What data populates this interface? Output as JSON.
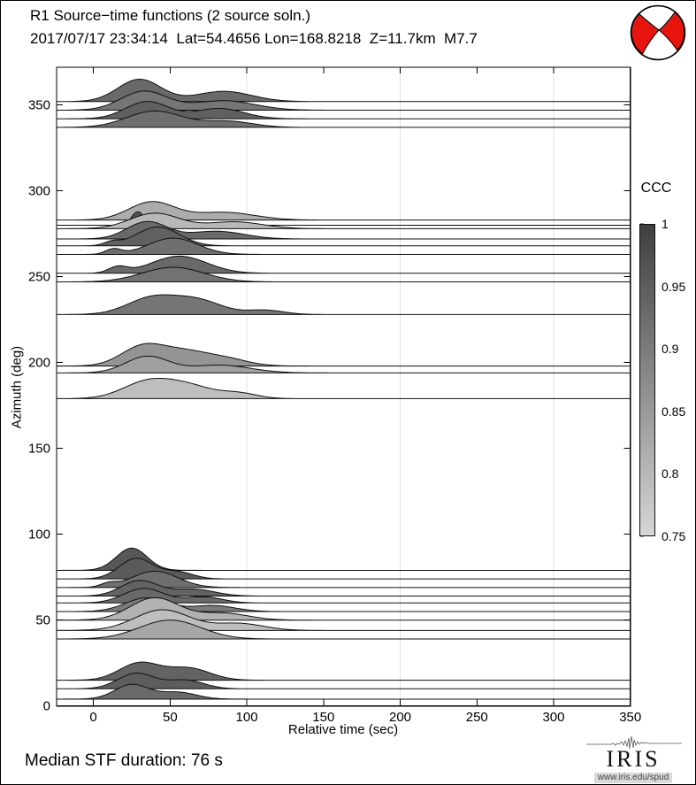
{
  "header": {
    "title_line1": "R1 Source−time functions (2 source soln.)",
    "title_line2": "2017/07/17 23:34:14  Lat=54.4656 Lon=168.8218  Z=11.7km  M7.7"
  },
  "footer": {
    "median_duration_label": "Median STF duration: 76 s"
  },
  "logo": {
    "name": "IRIS",
    "url": "www.iris.edu/spud"
  },
  "beachball": {
    "red_hex": "#e8150f",
    "white_hex": "#ffffff",
    "outline_hex": "#000000"
  },
  "chart_data": {
    "type": "area",
    "variant": "azimuth-stacked source-time functions (ridgeline)",
    "title": "R1 Source−time functions (2 source soln.)",
    "event": {
      "origin_time": "2017/07/17 23:34:14",
      "lat": 54.4656,
      "lon": 168.8218,
      "depth_km": 11.7,
      "magnitude": "M7.7",
      "median_stf_duration_s": 76
    },
    "xlabel": "Relative time (sec)",
    "ylabel": "Azimuth (deg)",
    "xlim": [
      -24,
      350
    ],
    "ylim": [
      0,
      372
    ],
    "xticks": [
      0,
      50,
      100,
      150,
      200,
      250,
      300,
      350
    ],
    "yticks": [
      0,
      50,
      100,
      150,
      200,
      250,
      300,
      350
    ],
    "gridlines_x": [
      100,
      200,
      300
    ],
    "grid": "light vertical gridlines only",
    "line_color": "#111111",
    "gridline_color": "#e3e3e3",
    "colorbar": {
      "title": "CCC",
      "min": 0.75,
      "max": 1.0,
      "tick_values": [
        1,
        0.95,
        0.9,
        0.85,
        0.8,
        0.75
      ],
      "tick_labels": [
        "1",
        "0.95",
        "0.9",
        "0.85",
        "0.8",
        "0.75"
      ],
      "top_color": "#3f3f3f",
      "bottom_color": "#d6d6d6",
      "legend_position": "right"
    },
    "amplitude_units": "deg (azimuth axis units)",
    "gaussian_format": "[center_sec, sigma_sec, amplitude_deg]",
    "traces": [
      {
        "azimuth_deg": 352,
        "ccc": 0.93,
        "gaussians": [
          [
            30,
            14,
            13
          ],
          [
            85,
            18,
            6
          ]
        ]
      },
      {
        "azimuth_deg": 347,
        "ccc": 0.91,
        "gaussians": [
          [
            33,
            15,
            11
          ],
          [
            85,
            20,
            5.5
          ]
        ]
      },
      {
        "azimuth_deg": 342,
        "ccc": 0.945,
        "gaussians": [
          [
            35,
            14,
            10
          ],
          [
            82,
            16,
            6
          ]
        ]
      },
      {
        "azimuth_deg": 337,
        "ccc": 0.92,
        "gaussians": [
          [
            40,
            18,
            9.5
          ],
          [
            88,
            16,
            3.5
          ]
        ]
      },
      {
        "azimuth_deg": 283,
        "ccc": 0.82,
        "gaussians": [
          [
            38,
            15,
            10.5
          ],
          [
            85,
            20,
            4.5
          ]
        ]
      },
      {
        "azimuth_deg": 280,
        "ccc": 0.97,
        "gaussians": [
          [
            29,
            4,
            8
          ]
        ]
      },
      {
        "azimuth_deg": 278,
        "ccc": 0.8,
        "gaussians": [
          [
            40,
            16,
            9
          ],
          [
            92,
            18,
            4
          ]
        ]
      },
      {
        "azimuth_deg": 272,
        "ccc": 0.93,
        "gaussians": [
          [
            35,
            13,
            10
          ],
          [
            80,
            18,
            4.5
          ]
        ]
      },
      {
        "azimuth_deg": 268,
        "ccc": 0.945,
        "gaussians": [
          [
            12,
            5,
            2
          ],
          [
            42,
            14,
            11
          ]
        ]
      },
      {
        "azimuth_deg": 263,
        "ccc": 0.92,
        "gaussians": [
          [
            13,
            5,
            3
          ],
          [
            52,
            16,
            9.5
          ]
        ]
      },
      {
        "azimuth_deg": 252,
        "ccc": 0.93,
        "gaussians": [
          [
            16,
            6,
            3.5
          ],
          [
            56,
            18,
            10
          ]
        ]
      },
      {
        "azimuth_deg": 247,
        "ccc": 0.915,
        "gaussians": [
          [
            52,
            20,
            8.5
          ]
        ]
      },
      {
        "azimuth_deg": 228,
        "ccc": 0.91,
        "gaussians": [
          [
            38,
            16,
            9.5
          ],
          [
            68,
            16,
            8
          ],
          [
            112,
            12,
            2.5
          ]
        ]
      },
      {
        "azimuth_deg": 198,
        "ccc": 0.86,
        "gaussians": [
          [
            32,
            14,
            11
          ],
          [
            60,
            16,
            8
          ],
          [
            88,
            14,
            3.5
          ]
        ]
      },
      {
        "azimuth_deg": 194,
        "ccc": 0.84,
        "gaussians": [
          [
            35,
            14,
            9.5
          ],
          [
            82,
            20,
            4.5
          ]
        ]
      },
      {
        "azimuth_deg": 179,
        "ccc": 0.79,
        "gaussians": [
          [
            35,
            16,
            9.5
          ],
          [
            62,
            16,
            7
          ],
          [
            95,
            12,
            3
          ]
        ]
      },
      {
        "azimuth_deg": 79,
        "ccc": 0.96,
        "gaussians": [
          [
            25,
            10,
            13
          ]
        ]
      },
      {
        "azimuth_deg": 74,
        "ccc": 0.955,
        "gaussians": [
          [
            28,
            11,
            12
          ],
          [
            55,
            10,
            4
          ]
        ]
      },
      {
        "azimuth_deg": 69,
        "ccc": 0.92,
        "gaussians": [
          [
            10,
            5,
            2
          ],
          [
            40,
            15,
            9.5
          ]
        ]
      },
      {
        "azimuth_deg": 64,
        "ccc": 0.94,
        "gaussians": [
          [
            30,
            12,
            9
          ],
          [
            65,
            14,
            4
          ]
        ]
      },
      {
        "azimuth_deg": 60,
        "ccc": 0.93,
        "gaussians": [
          [
            33,
            13,
            8.5
          ],
          [
            72,
            12,
            3.5
          ]
        ]
      },
      {
        "azimuth_deg": 55,
        "ccc": 0.9,
        "gaussians": [
          [
            35,
            14,
            8
          ],
          [
            78,
            14,
            3.5
          ]
        ]
      },
      {
        "azimuth_deg": 50,
        "ccc": 0.81,
        "gaussians": [
          [
            40,
            16,
            13
          ],
          [
            85,
            16,
            4
          ]
        ]
      },
      {
        "azimuth_deg": 44,
        "ccc": 0.79,
        "gaussians": [
          [
            45,
            18,
            12
          ],
          [
            95,
            16,
            4
          ]
        ]
      },
      {
        "azimuth_deg": 39,
        "ccc": 0.83,
        "gaussians": [
          [
            50,
            20,
            11
          ]
        ]
      },
      {
        "azimuth_deg": 15,
        "ccc": 0.94,
        "gaussians": [
          [
            30,
            13,
            10
          ],
          [
            62,
            14,
            7
          ]
        ]
      },
      {
        "azimuth_deg": 10,
        "ccc": 0.95,
        "gaussians": [
          [
            28,
            12,
            9
          ],
          [
            60,
            12,
            5
          ]
        ]
      },
      {
        "azimuth_deg": 4,
        "ccc": 0.93,
        "gaussians": [
          [
            25,
            11,
            8.5
          ],
          [
            55,
            12,
            4
          ]
        ]
      }
    ]
  }
}
